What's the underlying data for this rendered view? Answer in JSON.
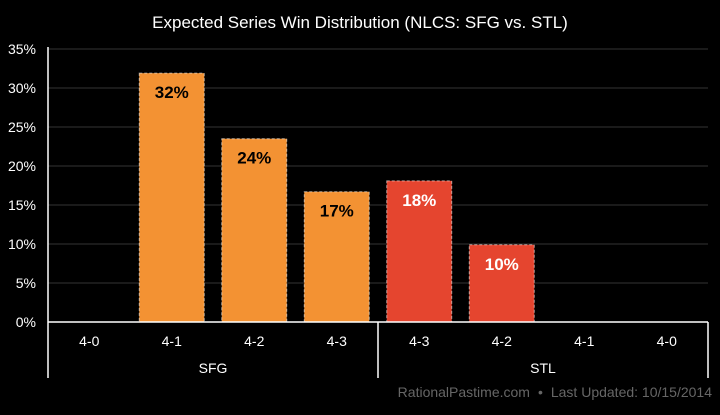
{
  "chart_data": {
    "type": "bar",
    "title": "Expected Series Win Distribution (NLCS: SFG vs. STL)",
    "xlabel": "",
    "ylabel": "",
    "ylim": [
      0,
      35
    ],
    "yticks": [
      "0%",
      "5%",
      "10%",
      "15%",
      "20%",
      "25%",
      "30%",
      "35%"
    ],
    "ytick_values": [
      0,
      5,
      10,
      15,
      20,
      25,
      30,
      35
    ],
    "grid": true,
    "groups": [
      {
        "name": "SFG",
        "color": "#F39233",
        "label_color": "#000000",
        "categories": [
          "4-0",
          "4-1",
          "4-2",
          "4-3"
        ],
        "values": [
          0,
          31.9,
          23.5,
          16.7
        ],
        "labels": [
          "",
          "32%",
          "24%",
          "17%"
        ]
      },
      {
        "name": "STL",
        "color": "#E5452F",
        "label_color": "#FFFFFF",
        "categories": [
          "4-3",
          "4-2",
          "4-1",
          "4-0"
        ],
        "values": [
          18.1,
          9.9,
          0,
          0
        ],
        "labels": [
          "18%",
          "10%",
          "",
          ""
        ]
      }
    ]
  },
  "footer": {
    "site": "RationalPastime.com",
    "separator": "•",
    "updated": "Last Updated: 10/15/2014"
  }
}
